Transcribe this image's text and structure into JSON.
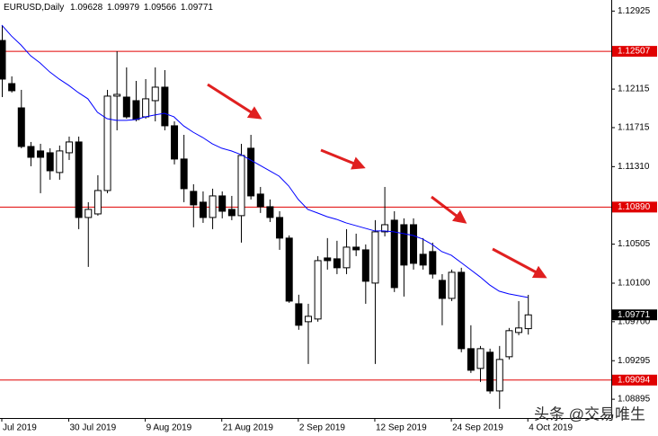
{
  "chart_data": {
    "type": "candlestick",
    "title": "EURUSD,Daily",
    "watermark": "头条 @交易唯生",
    "categories": [
      "Jul 2019",
      null,
      null,
      null,
      null,
      null,
      null,
      "30 Jul 2019",
      null,
      null,
      null,
      null,
      null,
      null,
      null,
      "9 Aug 2019",
      null,
      null,
      null,
      null,
      null,
      null,
      null,
      "21 Aug 2019",
      null,
      null,
      null,
      null,
      null,
      null,
      null,
      "2 Sep 2019",
      null,
      null,
      null,
      null,
      null,
      null,
      null,
      "12 Sep 2019",
      null,
      null,
      null,
      null,
      null,
      null,
      null,
      "24 Sep 2019",
      null,
      null,
      null,
      null,
      null,
      null,
      null,
      "4 Oct 2019"
    ],
    "open": [
      1.1262,
      1.12172,
      1.1192,
      1.11519,
      1.11473,
      1.11454,
      1.11249,
      1.11454,
      1.11566,
      1.10782,
      1.10819,
      1.11062,
      1.12042,
      1.12032,
      1.11995,
      1.11827,
      1.11995,
      1.12135,
      1.11734,
      1.11389,
      1.11053,
      1.10941,
      1.10782,
      1.11006,
      1.10866,
      1.10801,
      1.11501,
      1.11025,
      1.10894,
      1.10782,
      1.10568,
      1.09886,
      1.097,
      1.09728,
      1.10362,
      1.10353,
      1.1026,
      1.10474,
      1.10446,
      1.10101,
      1.10633,
      1.10754,
      1.10707,
      1.10707,
      1.104,
      1.10428,
      1.10129,
      1.09942,
      1.10213,
      1.0942,
      1.09215,
      1.09383,
      1.08981,
      1.09336,
      1.09588,
      1.09628
    ],
    "high": [
      1.12779,
      1.12247,
      1.12107,
      1.11566,
      1.11547,
      1.11501,
      1.11529,
      1.11622,
      1.11622,
      1.10941,
      1.11221,
      1.12107,
      1.12508,
      1.1234,
      1.122,
      1.12219,
      1.1234,
      1.12312,
      1.1178,
      1.1164,
      1.11127,
      1.11053,
      1.11081,
      1.11053,
      1.11006,
      1.11547,
      1.1164,
      1.11099,
      1.10969,
      1.10847,
      1.10596,
      1.0998,
      1.09886,
      1.10381,
      1.10568,
      1.1054,
      1.10661,
      1.10614,
      1.10502,
      1.10754,
      1.11099,
      1.10847,
      1.10773,
      1.10773,
      1.10568,
      1.10521,
      1.10194,
      1.10241,
      1.1026,
      1.09663,
      1.09448,
      1.0942,
      1.09448,
      1.09635,
      1.09914,
      1.09979
    ],
    "low": [
      1.12032,
      1.12079,
      1.11501,
      1.11314,
      1.11034,
      1.11174,
      1.11174,
      1.11379,
      1.10661,
      1.10269,
      1.10801,
      1.11034,
      1.11687,
      1.11808,
      1.1178,
      1.11808,
      1.1178,
      1.11687,
      1.11333,
      1.10941,
      1.1068,
      1.10726,
      1.10661,
      1.10773,
      1.10754,
      1.10521,
      1.10969,
      1.10829,
      1.10735,
      1.10446,
      1.09896,
      1.09616,
      1.09261,
      1.097,
      1.10241,
      1.10194,
      1.10194,
      1.10381,
      1.09886,
      1.09261,
      1.10586,
      1.10008,
      1.09961,
      1.10241,
      1.10241,
      1.10148,
      1.09663,
      1.09914,
      1.09383,
      1.09168,
      1.09075,
      1.08953,
      1.08795,
      1.09308,
      1.0956,
      1.09566
    ],
    "close": [
      1.12219,
      1.12098,
      1.11519,
      1.11407,
      1.11407,
      1.11267,
      1.11473,
      1.11566,
      1.10782,
      1.10866,
      1.11062,
      1.12042,
      1.1206,
      1.11827,
      1.11799,
      1.12014,
      1.12135,
      1.11734,
      1.11389,
      1.11081,
      1.10913,
      1.10782,
      1.11006,
      1.10847,
      1.10801,
      1.11426,
      1.11006,
      1.10894,
      1.10782,
      1.10568,
      1.09914,
      1.09663,
      1.09756,
      1.10334,
      1.10334,
      1.1026,
      1.10474,
      1.10446,
      1.1012,
      1.10633,
      1.10707,
      1.10054,
      1.10288,
      1.10306,
      1.10288,
      1.10194,
      1.09942,
      1.10213,
      1.0942,
      1.09196,
      1.0942,
      1.08981,
      1.09308,
      1.09607,
      1.09635,
      1.09771
    ],
    "bull_color": "#ffffff",
    "bear_color": "#000000",
    "ma": {
      "color": "#0000ff",
      "values": [
        1.12779,
        1.12667,
        1.12573,
        1.12462,
        1.12387,
        1.12294,
        1.12219,
        1.12154,
        1.12079,
        1.12014,
        1.11874,
        1.11808,
        1.1179,
        1.1179,
        1.11799,
        1.11827,
        1.11846,
        1.11864,
        1.11827,
        1.11734,
        1.11668,
        1.11613,
        1.11547,
        1.11501,
        1.11473,
        1.11435,
        1.11379,
        1.11323,
        1.11267,
        1.11211,
        1.11109,
        1.10969,
        1.10866,
        1.10829,
        1.10791,
        1.10763,
        1.10726,
        1.10698,
        1.1067,
        1.10642,
        1.10642,
        1.10633,
        1.10614,
        1.10596,
        1.10558,
        1.10502,
        1.10428,
        1.1039,
        1.10316,
        1.10241,
        1.10166,
        1.10082,
        1.10017,
        1.09989,
        1.0997,
        1.09952
      ]
    },
    "price_lines": {
      "color": "#e00000",
      "lines": [
        {
          "value": 1.12507,
          "label": "1.12507"
        },
        {
          "value": 1.1089,
          "label": "1.10890"
        },
        {
          "value": 1.09094,
          "label": "1.09094"
        }
      ]
    },
    "ylim": [
      1.087,
      1.1304
    ],
    "yticks": [
      1.12925,
      1.12115,
      1.11715,
      {
        "value": 1.1131,
        "label": "1.11310"
      },
      1.10505,
      {
        "value": 1.101,
        "label": "1.10100"
      },
      {
        "value": 1.097,
        "label": "1.09700"
      },
      1.09295,
      1.08895
    ]
  }
}
